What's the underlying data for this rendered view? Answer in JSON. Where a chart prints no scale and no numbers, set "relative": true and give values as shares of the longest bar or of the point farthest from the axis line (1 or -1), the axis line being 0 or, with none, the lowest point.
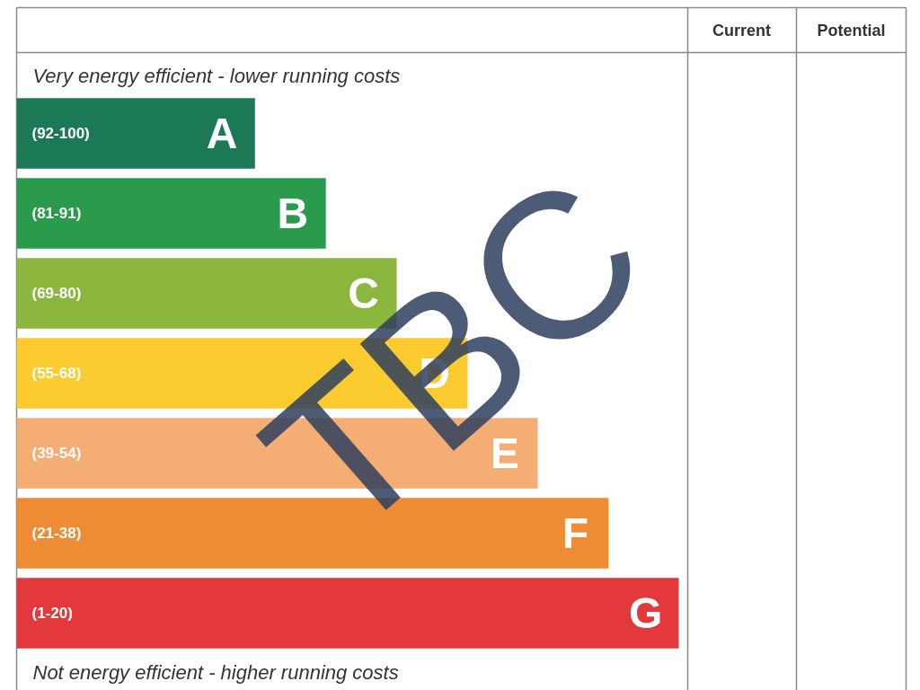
{
  "chart_data": {
    "type": "bar",
    "orientation": "horizontal",
    "relative": true,
    "categories": [
      "(92-100)",
      "(81-91)",
      "(69-80)",
      "(55-68)",
      "(39-54)",
      "(21-38)",
      "(1-20)"
    ],
    "values": [
      0.36,
      0.467,
      0.574,
      0.681,
      0.787,
      0.894,
      1
    ],
    "colors": [
      "#1b7a55",
      "#2a9a4c",
      "#8cb73e",
      "#fbcb2f",
      "#f4ad72",
      "#ee8c36",
      "#e3393c"
    ],
    "grid": false,
    "annotations": [
      "Very energy efficient - lower running costs",
      "Not energy efficient - higher running costs",
      "Current",
      "Potential",
      "TBC",
      {
        "text": "A",
        "x": 0.36,
        "y": "(92-100)"
      },
      {
        "text": "B",
        "x": 0.467,
        "y": "(81-91)"
      },
      {
        "text": "C",
        "x": 0.574,
        "y": "(69-80)"
      },
      {
        "text": "D",
        "x": 0.681,
        "y": "(55-68)"
      },
      {
        "text": "E",
        "x": 0.787,
        "y": "(39-54)"
      },
      {
        "text": "F",
        "x": 0.894,
        "y": "(21-38)"
      },
      {
        "text": "G",
        "x": 1,
        "y": "(1-20)"
      }
    ]
  }
}
